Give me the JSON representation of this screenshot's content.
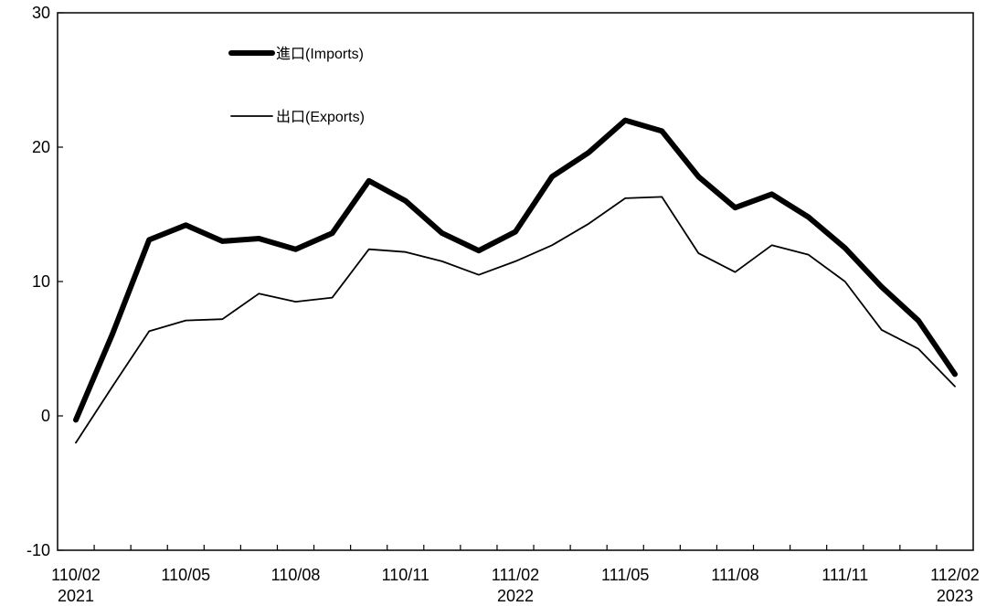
{
  "chart_data": {
    "type": "line",
    "title": "",
    "xlabel": "",
    "ylabel": "",
    "ylim": [
      -10,
      30
    ],
    "yticks": [
      -10,
      0,
      10,
      20,
      30
    ],
    "grid": false,
    "legend_position": "top-left",
    "categories": [
      "110/02",
      "110/03",
      "110/04",
      "110/05",
      "110/06",
      "110/07",
      "110/08",
      "110/09",
      "110/10",
      "110/11",
      "110/12",
      "111/01",
      "111/02",
      "111/03",
      "111/04",
      "111/05",
      "111/06",
      "111/07",
      "111/08",
      "111/09",
      "111/10",
      "111/11",
      "111/12",
      "112/01",
      "112/02"
    ],
    "x_tick_labels": [
      {
        "category": "110/02",
        "line1": "110/02",
        "line2": "2021"
      },
      {
        "category": "110/05",
        "line1": "110/05",
        "line2": ""
      },
      {
        "category": "110/08",
        "line1": "110/08",
        "line2": ""
      },
      {
        "category": "110/11",
        "line1": "110/11",
        "line2": ""
      },
      {
        "category": "111/02",
        "line1": "111/02",
        "line2": "2022"
      },
      {
        "category": "111/05",
        "line1": "111/05",
        "line2": ""
      },
      {
        "category": "111/08",
        "line1": "111/08",
        "line2": ""
      },
      {
        "category": "111/11",
        "line1": "111/11",
        "line2": ""
      },
      {
        "category": "112/02",
        "line1": "112/02",
        "line2": "2023"
      }
    ],
    "series": [
      {
        "name": "進口(Imports)",
        "color": "#000000",
        "style": "thick",
        "values": [
          -0.3,
          6.1,
          13.1,
          14.2,
          13.0,
          13.2,
          12.4,
          13.6,
          17.5,
          16.0,
          13.6,
          12.3,
          13.7,
          17.8,
          19.6,
          22.0,
          21.2,
          17.8,
          15.5,
          16.5,
          14.8,
          12.5,
          9.6,
          7.1,
          3.1
        ]
      },
      {
        "name": "出口(Exports)",
        "color": "#000000",
        "style": "thin",
        "values": [
          -2.0,
          2.2,
          6.3,
          7.1,
          7.2,
          9.1,
          8.5,
          8.8,
          12.4,
          12.2,
          11.5,
          10.5,
          11.5,
          12.7,
          14.3,
          16.2,
          16.3,
          12.1,
          10.7,
          12.7,
          12.0,
          10.0,
          6.4,
          5.0,
          2.2
        ]
      }
    ]
  }
}
